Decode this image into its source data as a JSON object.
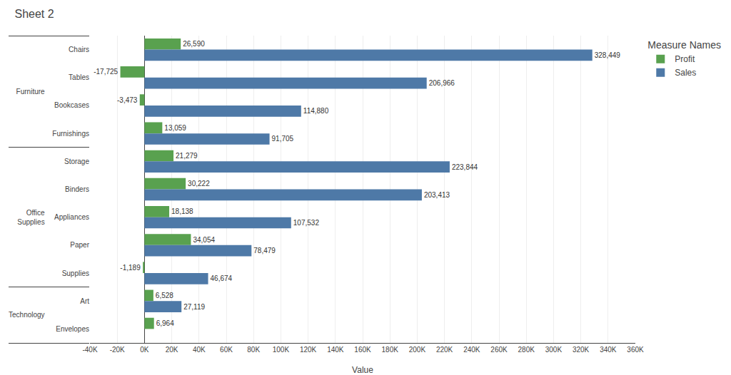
{
  "chart_data": {
    "type": "bar",
    "orientation": "horizontal",
    "title": "Sheet 2",
    "xlabel": "Value",
    "categories": [
      [
        "Furniture",
        "Chairs"
      ],
      [
        "Furniture",
        "Tables"
      ],
      [
        "Furniture",
        "Bookcases"
      ],
      [
        "Furniture",
        "Furnishings"
      ],
      [
        "Office\nSupplies",
        "Storage"
      ],
      [
        "Office\nSupplies",
        "Binders"
      ],
      [
        "Office\nSupplies",
        "Appliances"
      ],
      [
        "Office\nSupplies",
        "Paper"
      ],
      [
        "Office\nSupplies",
        "Supplies"
      ],
      [
        "Technology",
        "Art"
      ],
      [
        "Technology",
        "Envelopes"
      ]
    ],
    "legend_title": "Measure Names",
    "series": [
      {
        "name": "Profit",
        "color": "#59a14f",
        "values": [
          26590,
          -17725,
          -3473,
          13059,
          21279,
          30222,
          18138,
          34054,
          -1189,
          6528,
          6964
        ],
        "value_labels": [
          "26,590",
          "-17,725",
          "-3,473",
          "13,059",
          "21,279",
          "30,222",
          "18,138",
          "34,054",
          "-1,189",
          "6,528",
          "6,964"
        ]
      },
      {
        "name": "Sales",
        "color": "#4e79a7",
        "values": [
          328449,
          206966,
          114880,
          91705,
          223844,
          203413,
          107532,
          78479,
          46674,
          27119,
          null
        ],
        "value_labels": [
          "328,449",
          "206,966",
          "114,880",
          "91,705",
          "223,844",
          "203,413",
          "107,532",
          "78,479",
          "46,674",
          "27,119",
          null
        ]
      }
    ],
    "xlim": [
      -40000,
      360000
    ],
    "xticks": [
      {
        "value": -40000,
        "label": "-40K"
      },
      {
        "value": -20000,
        "label": "-20K"
      },
      {
        "value": 0,
        "label": "0K"
      },
      {
        "value": 20000,
        "label": "20K"
      },
      {
        "value": 40000,
        "label": "40K"
      },
      {
        "value": 60000,
        "label": "60K"
      },
      {
        "value": 80000,
        "label": "80K"
      },
      {
        "value": 100000,
        "label": "100K"
      },
      {
        "value": 120000,
        "label": "120K"
      },
      {
        "value": 140000,
        "label": "140K"
      },
      {
        "value": 160000,
        "label": "160K"
      },
      {
        "value": 180000,
        "label": "180K"
      },
      {
        "value": 200000,
        "label": "200K"
      },
      {
        "value": 220000,
        "label": "220K"
      },
      {
        "value": 240000,
        "label": "240K"
      },
      {
        "value": 260000,
        "label": "260K"
      },
      {
        "value": 280000,
        "label": "280K"
      },
      {
        "value": 300000,
        "label": "300K"
      },
      {
        "value": 320000,
        "label": "320K"
      },
      {
        "value": 340000,
        "label": "340K"
      },
      {
        "value": 360000,
        "label": "360K"
      }
    ],
    "grid": true,
    "legend": "upper right",
    "data_labels": true
  }
}
